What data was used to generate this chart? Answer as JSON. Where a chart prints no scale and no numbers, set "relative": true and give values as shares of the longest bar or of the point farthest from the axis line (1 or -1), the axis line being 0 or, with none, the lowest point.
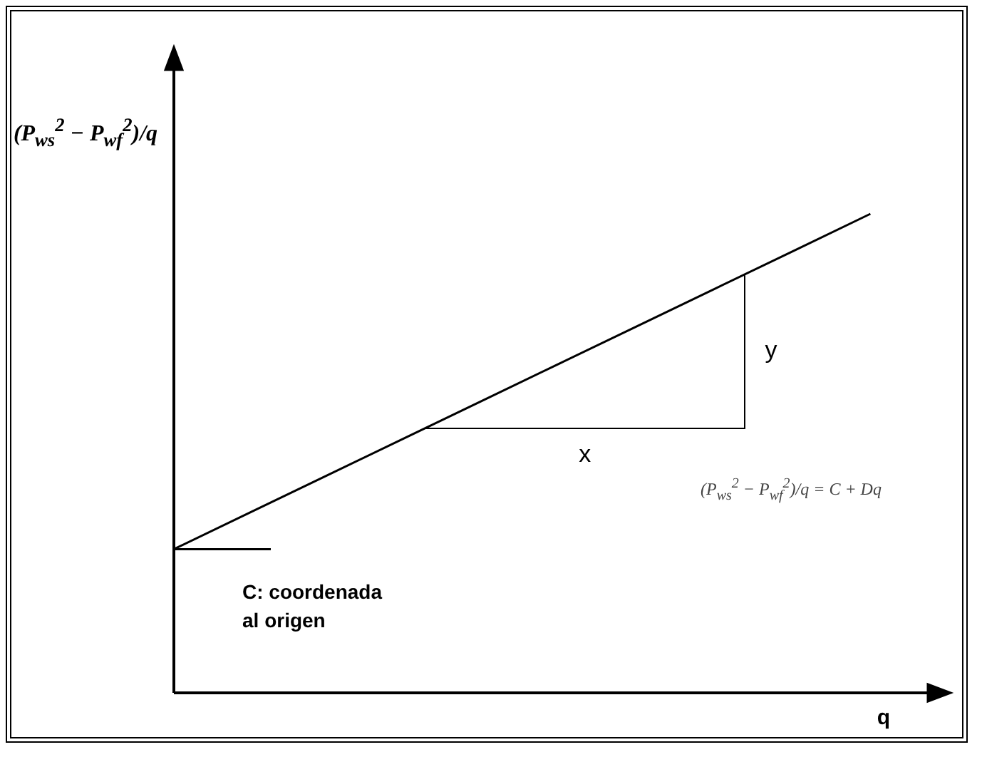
{
  "chart_data": {
    "type": "line",
    "relative": true,
    "xlabel": "q",
    "ylabel": "(P$_{ws}$$^{2}$ − P$_{wf}$$^{2}$)/q",
    "categories": [
      null,
      null,
      null,
      null,
      null,
      null,
      null,
      null,
      null,
      null,
      null
    ],
    "values": [
      0.3,
      0.3778,
      0.4556,
      0.5333,
      0.6111,
      0.6889,
      0.7667,
      0.8444,
      0.9222,
      1.0,
      null
    ],
    "color": "#000000",
    "marker": "none",
    "grid": false,
    "legend": false,
    "tick_labels": false,
    "annotations": [
      "y",
      "x",
      "C: coordenada al origen",
      "(P$_{ws}$$^{2}$ − P$_{wf}$$^{2}$)/q = C + Dq"
    ]
  }
}
